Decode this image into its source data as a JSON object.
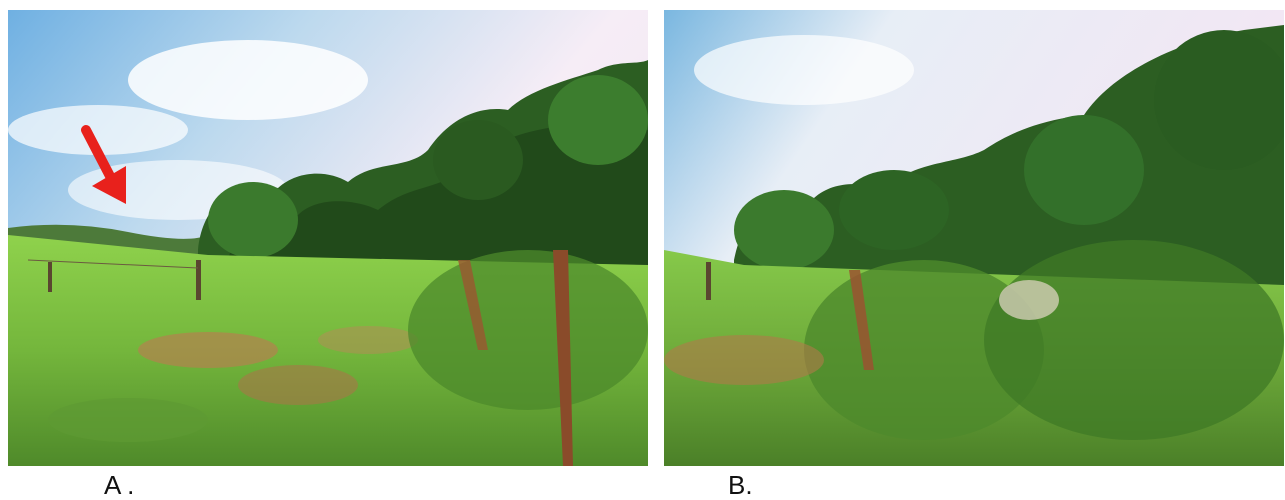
{
  "panels": [
    {
      "id": "A",
      "caption": "A .",
      "scene": "grassland-with-forest-edge",
      "has_arrow": true,
      "arrow_color": "#e8211c"
    },
    {
      "id": "B",
      "caption": "B.",
      "scene": "grassland-with-forest-edge",
      "has_arrow": false
    }
  ],
  "colors": {
    "sky_top": "#7fb6e0",
    "sky_haze": "#f4e9f4",
    "grass_light": "#8fd14a",
    "grass_mid": "#6aa83a",
    "tree_dark": "#1f4a1c",
    "tree_mid": "#2f6a25",
    "dry_grass": "#b07a4a"
  }
}
